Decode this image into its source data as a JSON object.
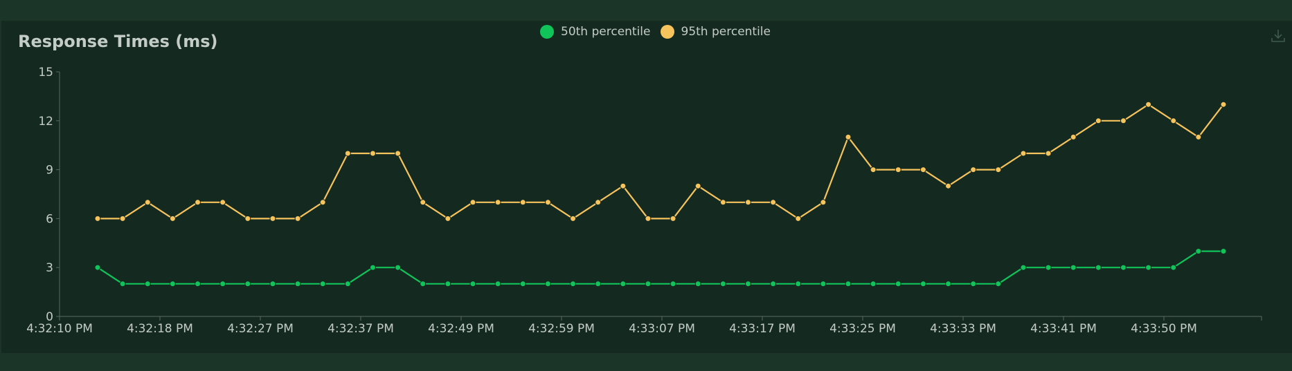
{
  "chart_data": {
    "type": "line",
    "title": "Response Times (ms)",
    "xlabel": "",
    "ylabel": "",
    "ylim": [
      0,
      15
    ],
    "yticks": [
      0,
      3,
      6,
      9,
      12,
      15
    ],
    "grid": false,
    "legend_position": "top-center",
    "x_tick_labels": [
      "4:32:10 PM",
      "4:32:18 PM",
      "4:32:27 PM",
      "4:32:37 PM",
      "4:32:49 PM",
      "4:32:59 PM",
      "4:33:07 PM",
      "4:33:17 PM",
      "4:33:25 PM",
      "4:33:33 PM",
      "4:33:41 PM",
      "4:33:50 PM"
    ],
    "series": [
      {
        "name": "50th percentile",
        "color": "#10c45a",
        "values": [
          3,
          2,
          2,
          2,
          2,
          2,
          2,
          2,
          2,
          2,
          2,
          3,
          3,
          2,
          2,
          2,
          2,
          2,
          2,
          2,
          2,
          2,
          2,
          2,
          2,
          2,
          2,
          2,
          2,
          2,
          2,
          2,
          2,
          2,
          2,
          2,
          2,
          3,
          3,
          3,
          3,
          3,
          3,
          3,
          4,
          4
        ]
      },
      {
        "name": "95th percentile",
        "color": "#f6c35c",
        "values": [
          6,
          6,
          7,
          6,
          7,
          7,
          6,
          6,
          6,
          7,
          10,
          10,
          10,
          7,
          6,
          7,
          7,
          7,
          7,
          6,
          7,
          8,
          6,
          6,
          8,
          7,
          7,
          7,
          6,
          7,
          11,
          9,
          9,
          9,
          8,
          9,
          9,
          10,
          10,
          11,
          12,
          12,
          13,
          12,
          11,
          13
        ]
      }
    ]
  },
  "toolbar": {
    "download_icon": "download-icon"
  },
  "colors": {
    "axis": "#5a6b63",
    "text": "#c4ccc8",
    "panel": "#142a21",
    "page": "#1b3529"
  }
}
